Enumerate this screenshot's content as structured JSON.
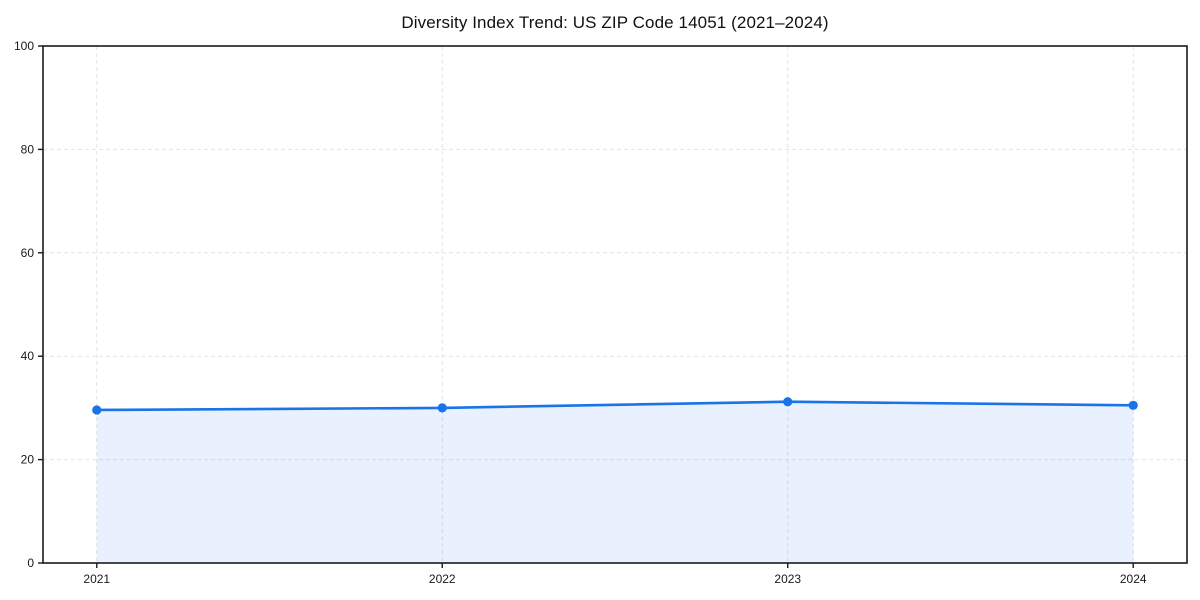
{
  "figure": {
    "title": "Diversity Index Trend: US ZIP Code 14051 (2021–2024)"
  },
  "chart_data": {
    "type": "line",
    "title": "Diversity Index Trend: US ZIP Code 14051 (2021–2024)",
    "x": [
      "2021",
      "2022",
      "2023",
      "2024"
    ],
    "series": [
      {
        "name": "Diversity Index",
        "values": [
          29.6,
          30.0,
          31.2,
          30.5
        ]
      }
    ],
    "xlabel": "",
    "ylabel": "",
    "ylim": [
      0,
      100
    ],
    "yticks": [
      0,
      20,
      40,
      60,
      80,
      100
    ],
    "grid": true,
    "legend": false,
    "markers": true,
    "area_fill": true,
    "style": {
      "line_color": "#1a73e8",
      "marker_color": "#1a73e8",
      "fill_color": "rgba(26,115,232,0.10)",
      "grid_color": "#e4e4e4",
      "spine_color": "#1a1a1a",
      "tick_label_color": "#1a1a1a",
      "title_color": "#111111",
      "background": "#ffffff"
    }
  }
}
